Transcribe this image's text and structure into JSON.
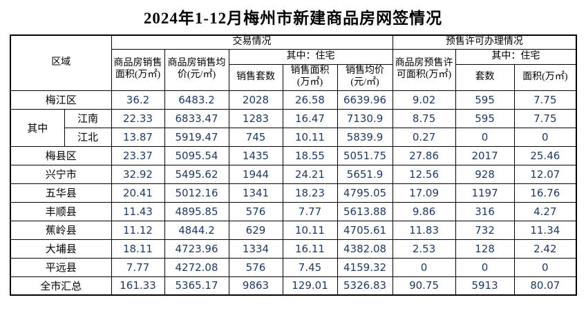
{
  "title": "2024年1-12月梅州市新建商品房网签情况",
  "colors": {
    "value_text": "#1F3864",
    "border": "#000000",
    "background": "#FFFFFF"
  },
  "table": {
    "header": {
      "region": "区域",
      "transaction_group": "交易情况",
      "presale_group": "预售许可办理情况",
      "sales_area": "商品房销售面积(万㎡)",
      "sales_avg_price": "商品房销售均价(元/㎡)",
      "residential_sub": "其中：住宅",
      "units_sold": "销售套数",
      "res_sales_area": "销售面积(万㎡)",
      "res_avg_price": "销售均价(元/㎡)",
      "presale_area": "商品房预售许可面积(万㎡)",
      "presale_residential_sub": "其中：住宅",
      "presale_units": "套数",
      "presale_res_area": "面积(万㎡)"
    },
    "rows": [
      {
        "type": "full",
        "region": "梅江区",
        "values": [
          "36.2",
          "6483.2",
          "2028",
          "26.58",
          "6639.96",
          "9.02",
          "595",
          "7.75"
        ]
      },
      {
        "type": "group-first",
        "group": "其中",
        "region": "江南",
        "values": [
          "22.33",
          "6833.47",
          "1283",
          "16.47",
          "7130.9",
          "8.75",
          "595",
          "7.75"
        ]
      },
      {
        "type": "group-next",
        "thin": true,
        "region": "江北",
        "values": [
          "13.87",
          "5919.47",
          "745",
          "10.11",
          "5839.9",
          "0.27",
          "0",
          "0"
        ]
      },
      {
        "type": "full",
        "region": "梅县区",
        "values": [
          "23.37",
          "5095.54",
          "1435",
          "18.55",
          "5051.75",
          "27.86",
          "2017",
          "25.46"
        ]
      },
      {
        "type": "full",
        "region": "兴宁市",
        "values": [
          "32.92",
          "5495.62",
          "1944",
          "24.21",
          "5651.9",
          "12.56",
          "928",
          "12.07"
        ]
      },
      {
        "type": "full",
        "region": "五华县",
        "values": [
          "20.41",
          "5012.16",
          "1341",
          "18.23",
          "4795.05",
          "17.09",
          "1197",
          "16.76"
        ]
      },
      {
        "type": "full",
        "region": "丰顺县",
        "values": [
          "11.43",
          "4895.85",
          "576",
          "7.77",
          "5613.88",
          "9.86",
          "316",
          "4.27"
        ]
      },
      {
        "type": "full",
        "region": "蕉岭县",
        "values": [
          "11.12",
          "4844.2",
          "629",
          "10.11",
          "4705.61",
          "11.83",
          "732",
          "11.34"
        ]
      },
      {
        "type": "full",
        "region": "大埔县",
        "values": [
          "18.11",
          "4723.96",
          "1334",
          "16.11",
          "4382.08",
          "2.53",
          "128",
          "2.42"
        ]
      },
      {
        "type": "full",
        "region": "平远县",
        "values": [
          "7.77",
          "4272.08",
          "576",
          "7.45",
          "4159.32",
          "0",
          "0",
          "0"
        ]
      },
      {
        "type": "full",
        "region": "全市汇总",
        "values": [
          "161.33",
          "5365.17",
          "9863",
          "129.01",
          "5326.83",
          "90.75",
          "5913",
          "80.07"
        ]
      }
    ]
  }
}
